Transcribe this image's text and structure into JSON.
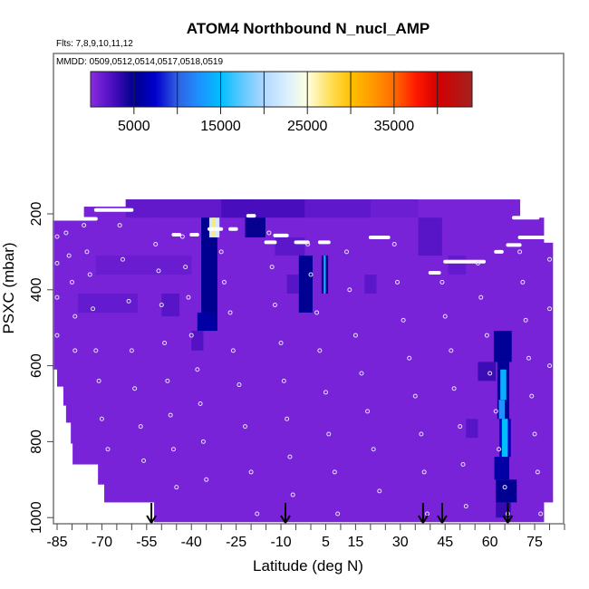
{
  "chart_data": {
    "type": "heatmap",
    "title": "ATOM4 Northbound N_nucl_AMP",
    "subtitle_flights": "Flts: 7,8,9,10,11,12",
    "subtitle_dates": "MMDD: 0509,0512,0514,0517,0518,0519",
    "xlabel": "Latitude (deg N)",
    "ylabel": "PSXC (mbar)",
    "xlim": [
      -86.5,
      85
    ],
    "ylim": [
      1017,
      -225
    ],
    "y_reversed": true,
    "x_ticks": [
      -85,
      -80,
      -75,
      -70,
      -65,
      -60,
      -55,
      -50,
      -45,
      -40,
      -35,
      -30,
      -25,
      -20,
      -15,
      -10,
      -5,
      0,
      5,
      10,
      15,
      20,
      25,
      30,
      35,
      40,
      45,
      50,
      55,
      60,
      65,
      70,
      75,
      80,
      85
    ],
    "x_tick_labels": [
      "-85",
      "-70",
      "-55",
      "-40",
      "-25",
      "-10",
      "5",
      "15",
      "30",
      "45",
      "60",
      "75"
    ],
    "x_tick_label_values": [
      -85,
      -70,
      -55,
      -40,
      -25,
      -10,
      5,
      15,
      30,
      45,
      60,
      75
    ],
    "y_ticks": [
      200,
      400,
      600,
      800,
      1000
    ],
    "y_tick_labels": [
      "200",
      "400",
      "600",
      "800",
      "1000"
    ],
    "colorbar": {
      "range": [
        0,
        44000
      ],
      "ticks": [
        5000,
        10000,
        15000,
        20000,
        25000,
        30000,
        35000,
        40000
      ],
      "tick_labels": [
        "5000",
        "15000",
        "25000",
        "35000"
      ],
      "tick_label_values": [
        5000,
        15000,
        25000,
        35000
      ],
      "stops": [
        [
          0,
          "#8a2be2"
        ],
        [
          2500,
          "#4b0fc0"
        ],
        [
          5000,
          "#00008b"
        ],
        [
          7500,
          "#0000cd"
        ],
        [
          10000,
          "#3060e0"
        ],
        [
          12500,
          "#1e90ff"
        ],
        [
          15000,
          "#00bfff"
        ],
        [
          17500,
          "#60c8ff"
        ],
        [
          20000,
          "#b0d8ff"
        ],
        [
          22500,
          "#d8eeff"
        ],
        [
          25000,
          "#ffffe0"
        ],
        [
          27500,
          "#ffe060"
        ],
        [
          30000,
          "#ffc000"
        ],
        [
          32500,
          "#ff9a00"
        ],
        [
          35000,
          "#ff6a00"
        ],
        [
          37500,
          "#ff1a00"
        ],
        [
          40000,
          "#d40000"
        ],
        [
          44000,
          "#a52020"
        ]
      ]
    },
    "coverage": [
      [
        -86.5,
        -85,
        217,
        610
      ],
      [
        -85,
        -82.9,
        217,
        655
      ],
      [
        -82.9,
        -82,
        217,
        705
      ],
      [
        -82,
        -80.4,
        217,
        750
      ],
      [
        -80.4,
        -79.8,
        217,
        805
      ],
      [
        -79.8,
        -76,
        217,
        860
      ],
      [
        -76,
        -71.3,
        181,
        860
      ],
      [
        -71.3,
        -69.2,
        181,
        913
      ],
      [
        -69.2,
        -62,
        181,
        960
      ],
      [
        -62,
        -52.5,
        162,
        960
      ],
      [
        -52.5,
        66,
        162,
        1012
      ],
      [
        66,
        70,
        162,
        1012
      ],
      [
        70,
        78,
        210,
        1012
      ],
      [
        78,
        81,
        276,
        960
      ]
    ],
    "background_value": 700,
    "cells": [
      [
        -62,
        -20,
        162,
        210,
        1600
      ],
      [
        -30,
        -2,
        162,
        210,
        2600
      ],
      [
        -2,
        20,
        162,
        210,
        1700
      ],
      [
        20,
        36,
        162,
        210,
        1200
      ],
      [
        -72,
        -40,
        310,
        360,
        1300
      ],
      [
        -78,
        -58,
        410,
        460,
        1500
      ],
      [
        -50,
        -44,
        410,
        470,
        2000
      ],
      [
        -36.7,
        -31.3,
        210,
        262,
        5200
      ],
      [
        -34,
        -30.6,
        210,
        262,
        22000
      ],
      [
        -33,
        -32,
        210,
        262,
        27000
      ],
      [
        -22,
        -15.2,
        210,
        262,
        4800
      ],
      [
        -36.7,
        -31.3,
        262,
        508,
        5200
      ],
      [
        -38,
        -32,
        460,
        508,
        6000
      ],
      [
        -40,
        -36,
        508,
        560,
        2200
      ],
      [
        -12,
        -2,
        262,
        310,
        1800
      ],
      [
        -4,
        0.6,
        310,
        460,
        5300
      ],
      [
        3.6,
        5.8,
        310,
        410,
        5000
      ],
      [
        4.3,
        5,
        310,
        410,
        14000
      ],
      [
        -8,
        -4,
        360,
        410,
        2000
      ],
      [
        18,
        22,
        360,
        410,
        1800
      ],
      [
        36,
        44,
        210,
        310,
        2000
      ],
      [
        46,
        52,
        310,
        360,
        1500
      ],
      [
        61.3,
        67.3,
        508,
        590,
        5400
      ],
      [
        56,
        62,
        590,
        640,
        3000
      ],
      [
        62.5,
        66.5,
        590,
        690,
        5500
      ],
      [
        63.5,
        65.5,
        610,
        690,
        14000
      ],
      [
        62.5,
        66.5,
        690,
        740,
        5500
      ],
      [
        63,
        65,
        690,
        740,
        12500
      ],
      [
        63.2,
        67,
        740,
        840,
        7000
      ],
      [
        64,
        66,
        740,
        840,
        15000
      ],
      [
        61.5,
        66.5,
        840,
        900,
        6000
      ],
      [
        62,
        69,
        900,
        960,
        5200
      ],
      [
        62,
        67,
        960,
        1000,
        3200
      ],
      [
        52,
        56,
        740,
        790,
        2000
      ]
    ],
    "flight_tracks": [
      [
        -86,
        -72,
        213
      ],
      [
        -72,
        -60,
        190
      ],
      [
        -46,
        -44,
        255
      ],
      [
        -40,
        -38,
        255
      ],
      [
        -34,
        -30,
        240
      ],
      [
        -27,
        -25,
        240
      ],
      [
        -21,
        -19,
        205
      ],
      [
        -12,
        -8,
        257
      ],
      [
        -15,
        -12,
        275
      ],
      [
        -5,
        -1,
        275
      ],
      [
        3,
        6,
        275
      ],
      [
        20,
        26,
        262
      ],
      [
        40,
        43,
        355
      ],
      [
        45,
        58,
        326
      ],
      [
        62,
        64,
        300
      ],
      [
        66,
        70,
        282
      ],
      [
        68,
        76,
        210
      ],
      [
        70,
        78,
        262
      ]
    ],
    "markers": [
      [
        -85,
        260
      ],
      [
        -85,
        330
      ],
      [
        -85,
        420
      ],
      [
        -85,
        520
      ],
      [
        -82,
        250
      ],
      [
        -81,
        310
      ],
      [
        -80,
        380
      ],
      [
        -79,
        470
      ],
      [
        -79,
        560
      ],
      [
        -76,
        230
      ],
      [
        -75,
        300
      ],
      [
        -74,
        360
      ],
      [
        -73,
        450
      ],
      [
        -72,
        560
      ],
      [
        -71,
        640
      ],
      [
        -70,
        740
      ],
      [
        -68,
        820
      ],
      [
        -64,
        230
      ],
      [
        -63,
        320
      ],
      [
        -61,
        430
      ],
      [
        -60,
        560
      ],
      [
        -59,
        660
      ],
      [
        -57,
        760
      ],
      [
        -56,
        850
      ],
      [
        -52,
        280
      ],
      [
        -51,
        350
      ],
      [
        -50,
        440
      ],
      [
        -49,
        540
      ],
      [
        -48,
        640
      ],
      [
        -47,
        730
      ],
      [
        -46,
        820
      ],
      [
        -45,
        920
      ],
      [
        -43,
        260
      ],
      [
        -42,
        340
      ],
      [
        -41,
        420
      ],
      [
        -40,
        520
      ],
      [
        -38,
        610
      ],
      [
        -37,
        700
      ],
      [
        -36,
        800
      ],
      [
        -35,
        900
      ],
      [
        -30,
        300
      ],
      [
        -29,
        380
      ],
      [
        -27,
        460
      ],
      [
        -26,
        560
      ],
      [
        -24,
        650
      ],
      [
        -22,
        760
      ],
      [
        -20,
        880
      ],
      [
        -18,
        990
      ],
      [
        -14,
        250
      ],
      [
        -13,
        340
      ],
      [
        -12,
        440
      ],
      [
        -10,
        540
      ],
      [
        -9,
        640
      ],
      [
        -8,
        740
      ],
      [
        -7,
        840
      ],
      [
        -6,
        940
      ],
      [
        -1,
        280
      ],
      [
        0,
        360
      ],
      [
        2,
        460
      ],
      [
        3,
        560
      ],
      [
        5,
        670
      ],
      [
        6,
        780
      ],
      [
        8,
        880
      ],
      [
        9,
        990
      ],
      [
        12,
        300
      ],
      [
        13,
        400
      ],
      [
        15,
        520
      ],
      [
        17,
        620
      ],
      [
        19,
        720
      ],
      [
        21,
        820
      ],
      [
        23,
        930
      ],
      [
        28,
        280
      ],
      [
        29,
        380
      ],
      [
        31,
        480
      ],
      [
        33,
        580
      ],
      [
        35,
        680
      ],
      [
        37,
        780
      ],
      [
        38,
        880
      ],
      [
        39,
        990
      ],
      [
        44,
        380
      ],
      [
        45,
        470
      ],
      [
        47,
        560
      ],
      [
        48,
        660
      ],
      [
        50,
        760
      ],
      [
        51,
        860
      ],
      [
        52,
        970
      ],
      [
        56,
        330
      ],
      [
        57,
        420
      ],
      [
        59,
        520
      ],
      [
        60,
        620
      ],
      [
        62,
        720
      ],
      [
        63,
        820
      ],
      [
        65,
        920
      ],
      [
        66,
        990
      ],
      [
        70,
        300
      ],
      [
        71,
        380
      ],
      [
        72,
        480
      ],
      [
        73,
        580
      ],
      [
        74,
        680
      ],
      [
        75,
        780
      ],
      [
        76,
        880
      ],
      [
        77,
        990
      ],
      [
        80,
        320
      ],
      [
        80,
        450
      ],
      [
        80,
        600
      ]
    ],
    "arrows_lat": [
      -53.4,
      -8.5,
      37.6,
      44,
      66
    ]
  }
}
